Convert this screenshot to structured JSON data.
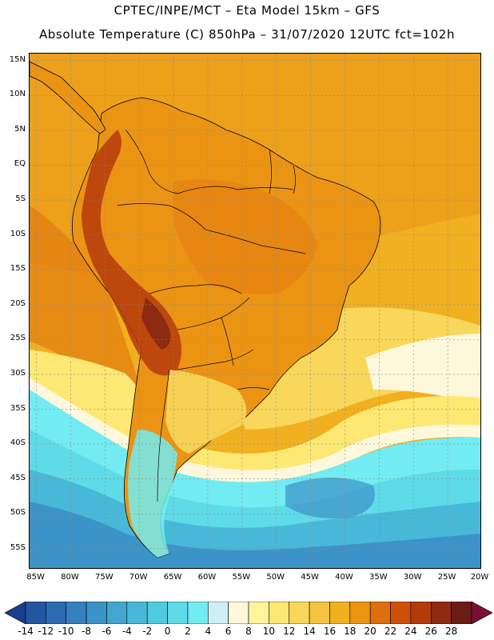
{
  "header": {
    "line1": "CPTEC/INPE/MCT –  Eta Model 15km – GFS",
    "line2": "Absolute Temperature (C) 850hPa – 31/07/2020 12UTC fct=102h"
  },
  "axes": {
    "lat_labels": [
      "15N",
      "10N",
      "5N",
      "EQ",
      "5S",
      "10S",
      "15S",
      "20S",
      "25S",
      "30S",
      "35S",
      "40S",
      "45S",
      "50S",
      "55S"
    ],
    "lat_values": [
      15,
      10,
      5,
      0,
      -5,
      -10,
      -15,
      -20,
      -25,
      -30,
      -35,
      -40,
      -45,
      -50,
      -55
    ],
    "lon_labels": [
      "85W",
      "80W",
      "75W",
      "70W",
      "65W",
      "60W",
      "55W",
      "50W",
      "45W",
      "40W",
      "35W",
      "30W",
      "25W",
      "20W"
    ],
    "lon_values": [
      -85,
      -80,
      -75,
      -70,
      -65,
      -60,
      -55,
      -50,
      -45,
      -40,
      -35,
      -30,
      -25,
      -20
    ],
    "lat_range": [
      -58,
      16
    ],
    "lon_range": [
      -86,
      -20
    ]
  },
  "colorbar": {
    "labels": [
      "-14",
      "-12",
      "-10",
      "-8",
      "-6",
      "-4",
      "-2",
      "0",
      "2",
      "4",
      "6",
      "8",
      "10",
      "12",
      "14",
      "16",
      "18",
      "20",
      "22",
      "24",
      "26",
      "28"
    ],
    "colors": [
      "#1a3d8f",
      "#2356a0",
      "#2b6cb0",
      "#3580be",
      "#3c93c8",
      "#43a6cf",
      "#48b8d8",
      "#4fcbe0",
      "#5edbe8",
      "#72ecf2",
      "#cfeff7",
      "#fdf7dc",
      "#fef49a",
      "#fde873",
      "#f8d75a",
      "#f2c442",
      "#f0b020",
      "#eb9414",
      "#df6f0c",
      "#cd500a",
      "#b53a0a",
      "#8c2a12",
      "#6b1c17",
      "#7a1030"
    ]
  },
  "map_colors": {
    "ocean_warm": "#f0b020",
    "ocean_mid": "#f2c442",
    "ocean_cool": "#fde873",
    "cream": "#fdf7dc",
    "cyan_light": "#72ecf2",
    "cyan": "#5edbe8",
    "cyan_deep": "#48b8d8",
    "blue": "#3c93c8",
    "land_orange": "#eb9414",
    "land_warm": "#df6f0c",
    "andes": "#b53a0a",
    "border": "#000000",
    "grid": "#888888"
  }
}
